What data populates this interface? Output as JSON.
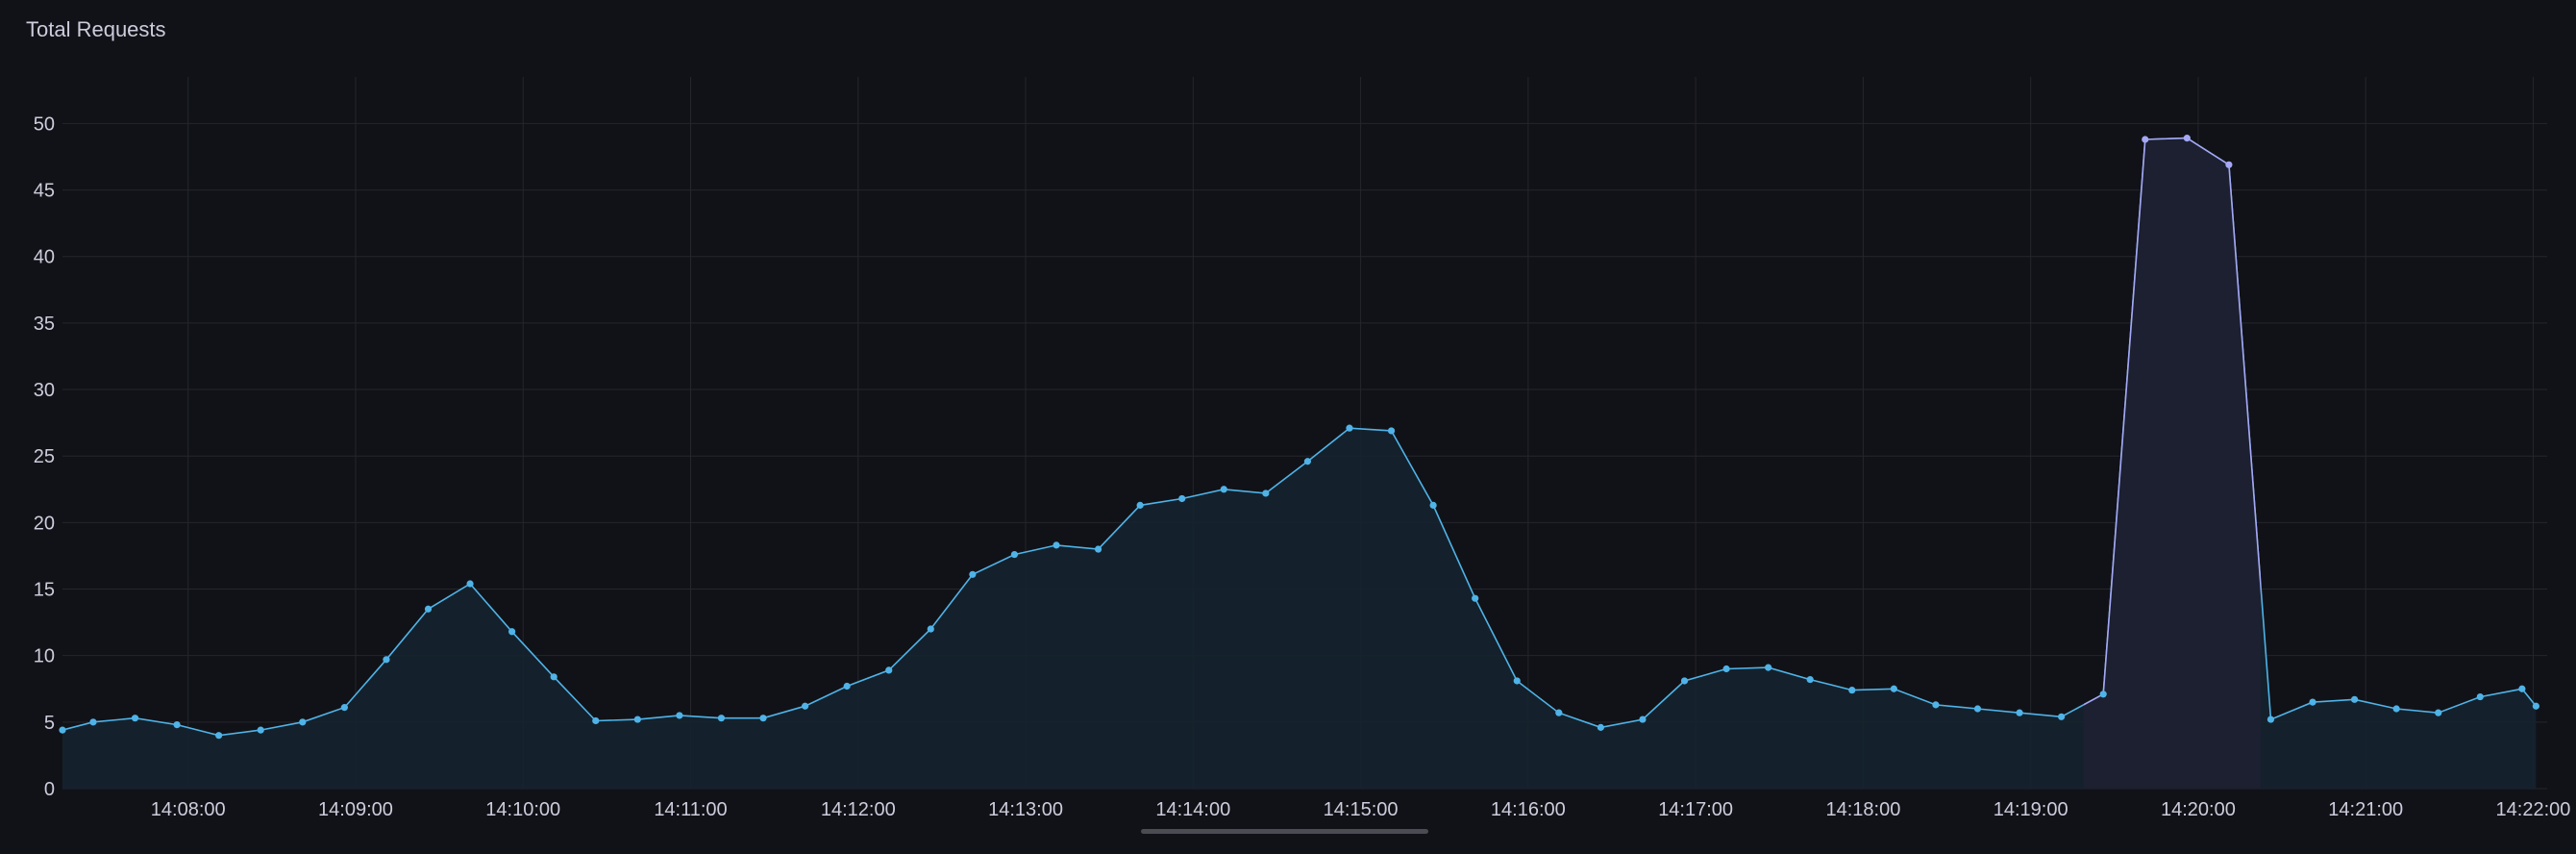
{
  "panel": {
    "title": "Total Requests"
  },
  "colors": {
    "background": "#111217",
    "grid": "#24262c",
    "text": "#ccccdc",
    "series_line": "#4fb3e8",
    "series_fill": "#15242f",
    "spike_line": "#a5a8f5",
    "spike_fill": "#1c2030",
    "scrollbar": "#4b4c53"
  },
  "chart_data": {
    "type": "line",
    "title": "Total Requests",
    "xlabel": "",
    "ylabel": "",
    "ylim": [
      0,
      53.5
    ],
    "yticks": [
      0,
      5,
      10,
      15,
      20,
      25,
      30,
      35,
      40,
      45,
      50
    ],
    "xticks": [
      "14:08:00",
      "14:09:00",
      "14:10:00",
      "14:11:00",
      "14:12:00",
      "14:13:00",
      "14:14:00",
      "14:15:00",
      "14:16:00",
      "14:17:00",
      "14:18:00",
      "14:19:00",
      "14:20:00",
      "14:21:00",
      "14:22:00"
    ],
    "xlim": [
      "14:07:15",
      "14:22:05"
    ],
    "interval_seconds": 15,
    "grid": true,
    "fill": true,
    "series": [
      {
        "points": [
          [
            "14:07:15",
            4.4
          ],
          [
            "14:07:26",
            5.0
          ],
          [
            "14:07:41",
            5.3
          ],
          [
            "14:07:56",
            4.8
          ],
          [
            "14:08:11",
            4.0
          ],
          [
            "14:08:26",
            4.4
          ],
          [
            "14:08:41",
            5.0
          ],
          [
            "14:08:56",
            6.1
          ],
          [
            "14:09:11",
            9.7
          ],
          [
            "14:09:26",
            13.5
          ],
          [
            "14:09:41",
            15.4
          ],
          [
            "14:09:56",
            11.8
          ],
          [
            "14:10:11",
            8.4
          ],
          [
            "14:10:26",
            5.1
          ],
          [
            "14:10:41",
            5.2
          ],
          [
            "14:10:56",
            5.5
          ],
          [
            "14:11:11",
            5.3
          ],
          [
            "14:11:26",
            5.3
          ],
          [
            "14:11:41",
            6.2
          ],
          [
            "14:11:56",
            7.7
          ],
          [
            "14:12:11",
            8.9
          ],
          [
            "14:12:26",
            12.0
          ],
          [
            "14:12:41",
            16.1
          ],
          [
            "14:12:56",
            17.6
          ],
          [
            "14:13:11",
            18.3
          ],
          [
            "14:13:26",
            18.0
          ],
          [
            "14:13:41",
            21.3
          ],
          [
            "14:13:56",
            21.8
          ],
          [
            "14:14:11",
            22.5
          ],
          [
            "14:14:26",
            22.2
          ],
          [
            "14:14:41",
            24.6
          ],
          [
            "14:14:56",
            27.1
          ],
          [
            "14:15:11",
            26.9
          ],
          [
            "14:15:26",
            21.3
          ],
          [
            "14:15:41",
            14.3
          ],
          [
            "14:15:56",
            8.1
          ],
          [
            "14:16:11",
            5.7
          ],
          [
            "14:16:26",
            4.6
          ],
          [
            "14:16:41",
            5.2
          ],
          [
            "14:16:56",
            8.1
          ],
          [
            "14:17:11",
            9.0
          ],
          [
            "14:17:26",
            9.1
          ],
          [
            "14:17:41",
            8.2
          ],
          [
            "14:17:56",
            7.4
          ],
          [
            "14:18:11",
            7.5
          ],
          [
            "14:18:26",
            6.3
          ],
          [
            "14:18:41",
            6.0
          ],
          [
            "14:18:56",
            5.7
          ],
          [
            "14:19:11",
            5.4
          ],
          [
            "14:19:26",
            7.1
          ],
          [
            "14:19:41",
            48.8
          ],
          [
            "14:19:56",
            48.9
          ],
          [
            "14:20:11",
            46.9
          ],
          [
            "14:20:26",
            5.2
          ],
          [
            "14:20:41",
            6.5
          ],
          [
            "14:20:56",
            6.7
          ],
          [
            "14:21:11",
            6.0
          ],
          [
            "14:21:26",
            5.7
          ],
          [
            "14:21:41",
            6.9
          ],
          [
            "14:21:56",
            7.5
          ],
          [
            "14:22:01",
            6.2
          ]
        ]
      }
    ]
  }
}
